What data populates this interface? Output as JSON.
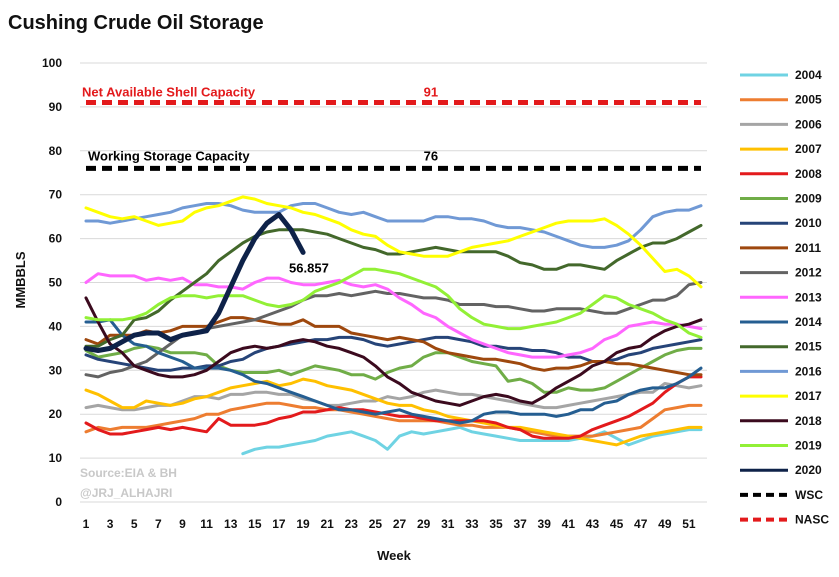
{
  "chart_data": {
    "type": "line",
    "title": "Cushing Crude Oil Storage",
    "xlabel": "Week",
    "ylabel": "MMBBLS",
    "xlim": [
      1,
      52
    ],
    "ylim": [
      0,
      100
    ],
    "x_ticks": [
      1,
      3,
      5,
      7,
      9,
      11,
      13,
      15,
      17,
      19,
      21,
      23,
      25,
      27,
      29,
      31,
      33,
      35,
      37,
      39,
      41,
      43,
      45,
      47,
      49,
      51
    ],
    "y_ticks": [
      0,
      10,
      20,
      30,
      40,
      50,
      60,
      70,
      80,
      90,
      100
    ],
    "grid": "horizontal",
    "legend_position": "right",
    "source_lines": [
      "Source:EIA & BH",
      "@JRJ_ALHAJRI"
    ],
    "annotations": [
      {
        "text": "Net Available Shell Capacity",
        "color": "#e31a1c"
      },
      {
        "text": "91",
        "color": "#e31a1c"
      },
      {
        "text": "Working Storage Capacity",
        "color": "#000000"
      },
      {
        "text": "76",
        "color": "#000000"
      },
      {
        "text": "56.857",
        "color": "#000000"
      }
    ],
    "series": [
      {
        "name": "2004",
        "color": "#6fd3e3",
        "width": 3,
        "x_start": 14,
        "values": [
          11,
          12,
          12.5,
          12.5,
          13,
          13.5,
          14,
          15,
          15.5,
          16,
          15,
          14,
          12,
          15,
          16,
          15.5,
          16,
          16.5,
          17,
          16,
          15.5,
          15,
          14.5,
          14,
          14,
          14,
          14,
          14,
          14.5,
          15,
          16,
          14.5,
          13,
          14,
          15,
          15.5,
          16,
          16.5,
          16.5
        ]
      },
      {
        "name": "2005",
        "color": "#ed7d31",
        "width": 3,
        "values": [
          16,
          17,
          16.5,
          17,
          17,
          17,
          17.5,
          18,
          18.5,
          19,
          20,
          20,
          21,
          21.5,
          22,
          22.5,
          22.5,
          22,
          21.5,
          21.5,
          21,
          21,
          20.5,
          20,
          19.5,
          19,
          18.5,
          18.5,
          18.5,
          18.5,
          18,
          17.5,
          17.5,
          17,
          17,
          17,
          16.5,
          16,
          15.5,
          15,
          15,
          15,
          15,
          15.5,
          16,
          16.5,
          17,
          19,
          21,
          21.5,
          22,
          22
        ]
      },
      {
        "name": "2006",
        "color": "#a5a5a5",
        "width": 3,
        "values": [
          21.5,
          22,
          21.5,
          21,
          21,
          21.5,
          22,
          22,
          23,
          24,
          24,
          23.5,
          24.5,
          24.5,
          25,
          25,
          24.5,
          24.5,
          23.5,
          23,
          22,
          22,
          22.5,
          23,
          23,
          24,
          23.5,
          24,
          25,
          25.5,
          25,
          24.5,
          24.5,
          24,
          23.5,
          23,
          22.5,
          22,
          21.5,
          21.5,
          22,
          22.5,
          23,
          23.5,
          24,
          24.5,
          25,
          25,
          27,
          26.5,
          26,
          26.5
        ]
      },
      {
        "name": "2007",
        "color": "#ffc000",
        "width": 3,
        "values": [
          25.5,
          24.5,
          23,
          21.5,
          21.5,
          23,
          22.5,
          22,
          22.5,
          23.5,
          24,
          25,
          26,
          26.5,
          27,
          27.5,
          26.5,
          27,
          28,
          27.5,
          26.5,
          26,
          25.5,
          24.5,
          23.5,
          22.5,
          22,
          22,
          21,
          20.5,
          19.5,
          19,
          18.5,
          18,
          17.5,
          17,
          17,
          16.5,
          16,
          15.5,
          15,
          14.5,
          14,
          13.5,
          13,
          14,
          15,
          15.5,
          16,
          16.5,
          17,
          17
        ]
      },
      {
        "name": "2008",
        "color": "#e31a1c",
        "width": 3,
        "values": [
          18,
          16.5,
          15.5,
          15.5,
          16,
          16.5,
          17,
          16.5,
          17,
          16.5,
          16,
          19,
          17.5,
          17.5,
          17.5,
          18,
          19,
          19.5,
          20.5,
          20.5,
          21,
          21.5,
          21,
          21,
          20.5,
          20,
          19.5,
          19.5,
          19,
          18.5,
          18.5,
          18.5,
          18.5,
          18.5,
          18,
          17,
          16.5,
          15,
          14.5,
          14.5,
          14.5,
          15,
          16.5,
          17.5,
          18.5,
          19.5,
          21,
          22.5,
          25,
          27,
          28.5,
          28.5
        ]
      },
      {
        "name": "2009",
        "color": "#70ad47",
        "width": 3,
        "values": [
          34.5,
          33,
          33.5,
          34,
          35,
          35.5,
          35,
          34,
          34,
          34,
          33.5,
          31,
          30,
          29.5,
          29.5,
          29.5,
          30,
          29,
          30,
          31,
          30.5,
          30,
          29,
          29,
          28,
          29.5,
          30.5,
          31,
          33,
          34,
          34,
          33,
          32,
          31.5,
          31,
          27.5,
          28,
          27,
          25,
          25,
          26,
          25.5,
          25.5,
          26,
          27.5,
          29,
          30.5,
          32,
          33.5,
          34.5,
          35,
          35
        ]
      },
      {
        "name": "2010",
        "color": "#264478",
        "width": 3,
        "values": [
          33.5,
          32.5,
          32,
          31.5,
          31,
          30.5,
          30,
          30,
          30.5,
          30.5,
          31,
          31,
          32,
          32.5,
          34,
          35,
          35.5,
          36,
          36.5,
          37,
          37,
          37.5,
          37.5,
          37,
          36,
          35.5,
          36,
          36.5,
          37,
          37.5,
          37.5,
          37,
          36.5,
          35.5,
          35.5,
          35,
          35,
          34.5,
          34.5,
          34,
          33,
          33,
          32,
          32,
          32.5,
          33.5,
          34,
          35,
          35.5,
          36,
          36.5,
          37
        ]
      },
      {
        "name": "2011",
        "color": "#9e480e",
        "width": 3,
        "values": [
          37,
          36,
          38,
          38,
          38,
          39,
          38.5,
          39,
          40,
          40,
          40,
          41,
          42,
          42,
          41.5,
          41,
          40.5,
          40.5,
          41.5,
          40,
          40,
          40,
          38.5,
          38,
          37.5,
          37,
          37.5,
          37,
          36.5,
          35,
          34,
          33.5,
          33,
          32.5,
          32.5,
          32,
          31.5,
          30.5,
          30,
          30.5,
          30.5,
          31,
          32,
          32,
          31.5,
          31.5,
          31,
          30.5,
          30,
          29.5,
          29,
          29
        ]
      },
      {
        "name": "2012",
        "color": "#636363",
        "width": 3,
        "values": [
          29,
          28.5,
          29.5,
          30,
          31,
          32,
          34,
          36,
          38,
          38.5,
          39.5,
          40,
          40.5,
          41,
          41.5,
          42.5,
          43.5,
          44.5,
          46,
          47,
          47,
          47.5,
          47,
          47.5,
          48,
          47.5,
          47.5,
          47,
          46.5,
          46.5,
          46,
          45,
          45,
          45,
          44.5,
          44.5,
          44,
          43.5,
          43.5,
          44,
          44,
          44,
          43.5,
          43,
          43,
          44,
          45,
          46,
          46,
          47,
          49.5,
          50
        ]
      },
      {
        "name": "2013",
        "color": "#ff66ff",
        "width": 3,
        "values": [
          50,
          52,
          51.5,
          51.5,
          51.5,
          50.5,
          51,
          50.5,
          51,
          49.5,
          49.5,
          49,
          49,
          48.5,
          50,
          51,
          51,
          50,
          49.5,
          49.5,
          50,
          50.5,
          49.5,
          49,
          49.5,
          48.5,
          46.5,
          45,
          43,
          42,
          40,
          38.5,
          37,
          36,
          35,
          34,
          33.5,
          33,
          33,
          33,
          33.5,
          34,
          35,
          37,
          38,
          40,
          40.5,
          41,
          40.5,
          40.5,
          40,
          39.5
        ]
      },
      {
        "name": "2014",
        "color": "#255e91",
        "width": 3,
        "values": [
          41,
          41,
          41.5,
          38,
          36,
          35.5,
          34,
          33,
          32,
          30.5,
          30.5,
          30.5,
          30,
          29,
          27.5,
          27,
          26,
          25,
          24,
          23,
          22,
          21,
          21,
          20.5,
          20,
          20.5,
          21,
          20,
          19.5,
          19,
          18.5,
          18,
          18.5,
          20,
          20.5,
          20.5,
          20,
          20,
          20,
          19.5,
          20,
          21,
          21,
          22.5,
          23,
          24.5,
          25.5,
          26,
          26,
          27,
          28.5,
          30.5
        ]
      },
      {
        "name": "2015",
        "color": "#43682b",
        "width": 3,
        "values": [
          35.5,
          35.5,
          37,
          38,
          41.5,
          42,
          43.5,
          46,
          48,
          50,
          52,
          55,
          57,
          59,
          60.5,
          61.5,
          62,
          62,
          62,
          61.5,
          61,
          60,
          59,
          58,
          57.5,
          56.5,
          56.5,
          57,
          57.5,
          58,
          57.5,
          57,
          57,
          57,
          57,
          56,
          54.5,
          54,
          53,
          53,
          54,
          54,
          53.5,
          53,
          55,
          56.5,
          58,
          59,
          59,
          60,
          61.5,
          63
        ]
      },
      {
        "name": "2016",
        "color": "#7099d5",
        "width": 3,
        "values": [
          64,
          64,
          63.5,
          64,
          64.5,
          65,
          65.5,
          66,
          67,
          67.5,
          68,
          68,
          67.5,
          66.5,
          66,
          66,
          66,
          67.5,
          68,
          68,
          67,
          66,
          65.5,
          66,
          65,
          64,
          64,
          64,
          64,
          65,
          65,
          64.5,
          64.5,
          64,
          63,
          62.5,
          62.5,
          62,
          61.5,
          60.5,
          59.5,
          58.5,
          58,
          58,
          58.5,
          59.5,
          62,
          65,
          66,
          66.5,
          66.5,
          67.5
        ]
      },
      {
        "name": "2017",
        "color": "#ffff00",
        "width": 3,
        "values": [
          67,
          66,
          65,
          64.5,
          65,
          64,
          63,
          63.5,
          64,
          66,
          67,
          67.5,
          68.5,
          69.5,
          69,
          68,
          67.5,
          67,
          66,
          65.5,
          64.5,
          63.5,
          62,
          61,
          60.5,
          58.5,
          57,
          56.5,
          56,
          56,
          56,
          57,
          58,
          58.5,
          59,
          59.5,
          60.5,
          61.5,
          62.5,
          63.5,
          64,
          64,
          64,
          64.5,
          63,
          61,
          58.5,
          55.5,
          52.5,
          53,
          51.5,
          49
        ]
      },
      {
        "name": "2018",
        "color": "#3b0a1e",
        "width": 3,
        "values": [
          46.5,
          41,
          36,
          34,
          31,
          30,
          29,
          28.5,
          28.5,
          29,
          30,
          32,
          34,
          35,
          35.5,
          35,
          35.5,
          36.5,
          37,
          36.5,
          35.5,
          35,
          34,
          33,
          31,
          28.5,
          27,
          25,
          24,
          23,
          22.5,
          22,
          23,
          24,
          24.5,
          24,
          23,
          22.5,
          24,
          26,
          27.5,
          29,
          31,
          32,
          34,
          35,
          35.5,
          37.5,
          39,
          40,
          40.5,
          41.5
        ]
      },
      {
        "name": "2019",
        "color": "#92f036",
        "width": 3,
        "values": [
          42,
          41.5,
          41.5,
          41.5,
          42,
          43,
          45,
          46.5,
          47,
          47,
          46.5,
          47,
          47,
          47,
          46,
          45,
          44.5,
          45,
          46,
          48,
          49,
          50,
          51.5,
          53,
          53,
          52.5,
          52,
          51,
          50,
          49,
          47,
          44,
          42,
          40.5,
          40,
          39.5,
          39.5,
          40,
          40.5,
          41,
          42,
          43,
          45,
          47,
          46.5,
          45,
          44,
          43,
          41.5,
          40.5,
          38.5,
          37.5
        ]
      },
      {
        "name": "2020",
        "color": "#0e2249",
        "width": 5,
        "values": [
          35,
          34.5,
          35,
          36.5,
          38,
          38.5,
          38.5,
          37,
          38,
          38.5,
          39,
          43,
          49,
          55,
          60,
          63.5,
          65.5,
          62,
          56.857
        ]
      },
      {
        "name": "WSC",
        "color": "#000000",
        "width": 5,
        "dash": "10,6",
        "constant": 76
      },
      {
        "name": "NASC",
        "color": "#e31a1c",
        "width": 5,
        "dash": "10,6",
        "constant": 91
      }
    ]
  }
}
